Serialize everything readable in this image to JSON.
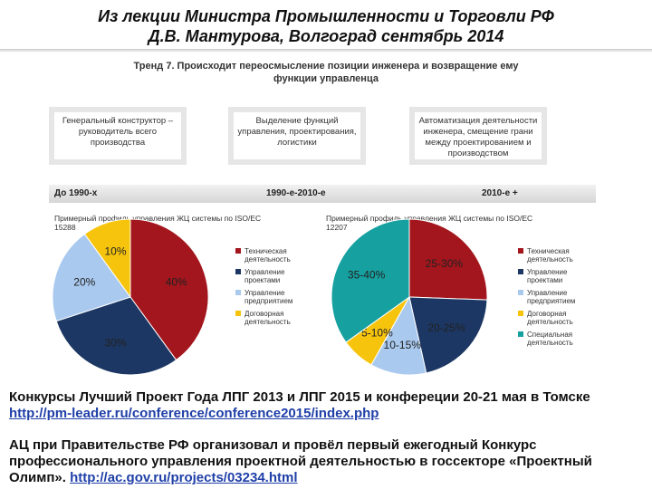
{
  "header": {
    "line1": "Из лекции Министра Промышленности и Торговли РФ",
    "line2": "Д.В. Мантурова, Волгоград сентябрь 2014"
  },
  "slide": {
    "trend_title_1": "Тренд 7. Происходит переосмысление позиции инженера и возвращение ему",
    "trend_title_2": "функции управленца",
    "stages": [
      "Генеральный конструктор – руководитель всего производства",
      "Выделение функций управления, проектирования, логистики",
      "Автоматизация деятельности инженера, смещение грани между проектированием и производством"
    ],
    "eras": [
      "До 1990-х",
      "1990-е-2010-е",
      "2010-е +"
    ],
    "profile_1": {
      "line1": "Примерный профиль управления ЖЦ системы по ISO/EC",
      "line2": "15288"
    },
    "profile_2": {
      "line1": "Примерный профиль управления ЖЦ системы по ISO/EC",
      "line2": "12207"
    }
  },
  "chart_data": [
    {
      "type": "pie",
      "slices": [
        {
          "name": "Техническая деятельность",
          "label": "40%",
          "value": 40,
          "color": "#a3161d"
        },
        {
          "name": "Управление проектами",
          "label": "30%",
          "value": 30,
          "color": "#1c3763"
        },
        {
          "name": "Управление предприятием",
          "label": "20%",
          "value": 20,
          "color": "#a9c9ef"
        },
        {
          "name": "Договорная деятельность",
          "label": "10%",
          "value": 10,
          "color": "#f7c40d"
        }
      ]
    },
    {
      "type": "pie",
      "slices": [
        {
          "name": "Техническая деятельность",
          "label": "25-30%",
          "value": 27.5,
          "color": "#a3161d"
        },
        {
          "name": "Управление проектами",
          "label": "20-25%",
          "value": 22.5,
          "color": "#1c3763"
        },
        {
          "name": "Управление предприятием",
          "label": "10-15%",
          "value": 12.5,
          "color": "#a9c9ef"
        },
        {
          "name": "Договорная деятельность",
          "label": "5-10%",
          "value": 7.5,
          "color": "#f7c40d"
        },
        {
          "name": "Специальная деятельность",
          "label": "35-40%",
          "value": 37.5,
          "color": "#17a0a0"
        }
      ]
    }
  ],
  "notes": {
    "note1_text": "Конкурсы Лучший Проект Года ЛПГ 2013 и ЛПГ 2015 и конфереции 20-21 мая в Томске ",
    "note1_link": "http://pm-leader.ru/conference/conference2015/index.php",
    "note2_text": "АЦ при Правительстве РФ организовал и провёл первый ежегодный Конкурс профессионального управления проектной деятельностью в госсекторе «Проектный Олимп». ",
    "note2_link": "http://ac.gov.ru/projects/03234.html"
  }
}
